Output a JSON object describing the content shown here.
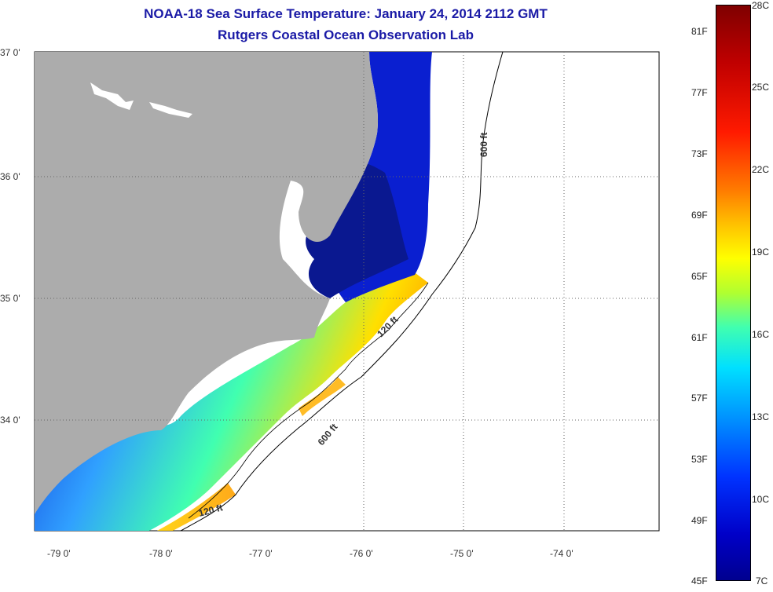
{
  "title": {
    "line1": "NOAA-18 Sea Surface Temperature:  January 24, 2014 2112 GMT",
    "line2": "Rutgers Coastal Ocean Observation Lab"
  },
  "axes": {
    "lat_labels": [
      "37 0'",
      "36 0'",
      "35 0'",
      "34 0'"
    ],
    "lon_labels": [
      "-79 0'",
      "-78 0'",
      "-77 0'",
      "-76 0'",
      "-75 0'",
      "-74 0'"
    ]
  },
  "contours": {
    "depth_600_a": "600 ft",
    "depth_600_b": "600 ft",
    "depth_120_a": "120 ft",
    "depth_120_b": "120 ft"
  },
  "colorbar": {
    "fahrenheit": [
      "81F",
      "77F",
      "73F",
      "69F",
      "65F",
      "61F",
      "57F",
      "53F",
      "49F",
      "45F"
    ],
    "celsius": [
      "28C",
      "25C",
      "22C",
      "19C",
      "16C",
      "13C",
      "10C",
      "7C"
    ]
  },
  "colors": {
    "land": "#acacac",
    "cold": "#0a28c8",
    "warm": "#ffc000",
    "title": "#1a1aa6"
  }
}
